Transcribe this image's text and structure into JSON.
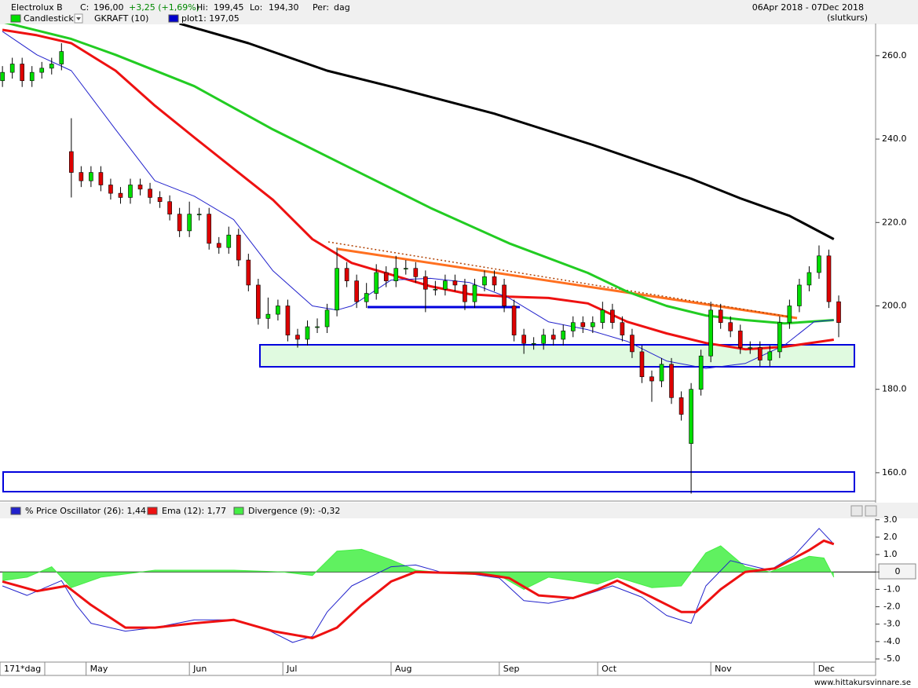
{
  "header": {
    "title": "Electrolux B",
    "close_label": "C:",
    "close": "196,00",
    "change": "+3,25 (+1,69%)",
    "high_label": "Hi:",
    "high": "199,45",
    "low_label": "Lo:",
    "low": "194,30",
    "period_label": "Per:",
    "period": "dag",
    "range": "06Apr 2018 - 07Dec 2018",
    "price_basis": "(slutkurs)"
  },
  "footer": {
    "bars": "171*dag",
    "source": "www.hittakursvinnare.se"
  },
  "chart_data": [
    {
      "type": "candlestick",
      "legend": [
        {
          "name": "Candlestick",
          "color": "#00e000"
        },
        {
          "name": "GKRAFT (10)"
        },
        {
          "name": "plot1: 197,05",
          "color": "#0000cc"
        }
      ],
      "up_color": "#00dd00",
      "down_color": "#dd0000",
      "xlim": [
        -0.5,
        177.5
      ],
      "ylim": [
        153.2,
        267.7
      ],
      "yticks": [
        {
          "value": 160,
          "label": "160.0"
        },
        {
          "value": 180,
          "label": "180.0"
        },
        {
          "value": 200,
          "label": "200.0"
        },
        {
          "value": 220,
          "label": "220.0"
        },
        {
          "value": 240,
          "label": "240.0"
        },
        {
          "value": 260,
          "label": "260.0"
        }
      ],
      "x": [
        0,
        2,
        4,
        6,
        8,
        10,
        12,
        14,
        16,
        18,
        20,
        22,
        24,
        26,
        28,
        30,
        32,
        34,
        36,
        38,
        40,
        42,
        44,
        46,
        48,
        50,
        52,
        54,
        56,
        58,
        60,
        62,
        64,
        66,
        68,
        70,
        72,
        74,
        76,
        78,
        80,
        82,
        84,
        86,
        88,
        90,
        92,
        94,
        96,
        98,
        100,
        102,
        104,
        106,
        108,
        110,
        112,
        114,
        116,
        118,
        120,
        122,
        124,
        126,
        128,
        130,
        132,
        134,
        136,
        138,
        140,
        142,
        144,
        146,
        148,
        150,
        152,
        154,
        156,
        158,
        160,
        162,
        164,
        166,
        168,
        170
      ],
      "open": [
        254,
        256,
        258,
        254,
        256,
        257,
        258,
        237,
        232,
        230,
        232,
        229,
        227,
        226,
        229,
        228,
        226,
        225,
        222,
        218,
        222,
        222,
        215,
        214,
        217,
        211,
        205,
        197,
        198,
        200,
        193,
        192,
        195,
        195,
        199,
        209,
        206,
        201,
        203,
        208,
        206,
        209,
        209,
        207,
        204,
        204,
        206,
        205,
        201,
        205,
        207,
        205,
        200,
        193,
        191,
        191,
        193,
        192,
        194,
        196,
        195,
        196,
        199,
        196,
        193,
        189,
        183,
        182,
        186,
        178,
        167,
        180,
        188,
        199,
        196,
        194,
        190,
        190,
        187,
        189,
        196,
        200,
        205,
        208,
        212,
        201
      ],
      "high": [
        257.5,
        259.5,
        259.5,
        257.5,
        258.5,
        259.5,
        263,
        245,
        233.5,
        233.5,
        233.5,
        230.5,
        228.5,
        230.5,
        230.5,
        229.5,
        227.5,
        226.5,
        223.5,
        225,
        223.5,
        223.5,
        216.5,
        219,
        218.5,
        212.5,
        206.5,
        202,
        201.5,
        201.5,
        194.5,
        196.5,
        197,
        200.5,
        214,
        210.5,
        207.5,
        205.5,
        210,
        209.5,
        212,
        211,
        210.5,
        208.5,
        206,
        207.5,
        207.5,
        206.5,
        206.5,
        208.5,
        208.5,
        206.5,
        201.5,
        194.5,
        192.5,
        194.5,
        194.5,
        195.5,
        197.5,
        197.5,
        197.5,
        201,
        200.5,
        197.5,
        194.5,
        190.5,
        184.5,
        187.5,
        187.5,
        179.5,
        181.5,
        189.5,
        201,
        200.5,
        197.5,
        195.5,
        191.5,
        191.5,
        190.5,
        197.5,
        201.5,
        206.5,
        209.5,
        214.5,
        213.5,
        202.5
      ],
      "low": [
        252.5,
        254.5,
        252.5,
        252.5,
        254.5,
        255.5,
        256.5,
        226,
        228.5,
        228.5,
        227.5,
        225.5,
        224.5,
        224.5,
        226.5,
        224.5,
        223.5,
        220.5,
        216.5,
        216.5,
        220.5,
        213.5,
        212.5,
        212.5,
        209.5,
        203.5,
        195.5,
        194.5,
        196.5,
        191.5,
        190,
        190.5,
        193.5,
        193.5,
        197.5,
        204.5,
        199.5,
        199.5,
        201.5,
        204.5,
        204.5,
        207.5,
        205.5,
        198.5,
        202.5,
        202.5,
        203.5,
        199,
        199.5,
        203.5,
        203.5,
        198.5,
        191.5,
        188.5,
        189.5,
        189.5,
        190.5,
        190.5,
        192.5,
        193.5,
        193.5,
        194.5,
        194.5,
        191.5,
        187.5,
        181.5,
        177,
        180.5,
        176.5,
        172.5,
        155,
        178.5,
        186.5,
        194.5,
        192.5,
        188.5,
        188.5,
        185.5,
        185.5,
        187.5,
        194.5,
        198.5,
        203.5,
        206.5,
        199.5,
        192.5
      ],
      "close": [
        256,
        258,
        254,
        256,
        257,
        258,
        261,
        232,
        230,
        232,
        229,
        227,
        226,
        229,
        228,
        226,
        225,
        222,
        218,
        222,
        222,
        215,
        214,
        217,
        211,
        205,
        197,
        198,
        200,
        193,
        192,
        195,
        195,
        199,
        209,
        206,
        201,
        203,
        208,
        206,
        209,
        209,
        207,
        204,
        204,
        206,
        205,
        201,
        205,
        207,
        205,
        200,
        193,
        191,
        191,
        193,
        192,
        194,
        196,
        195,
        196,
        199,
        196,
        193,
        189,
        183,
        182,
        186,
        178,
        174,
        180,
        188,
        199,
        196,
        194,
        190,
        190,
        187,
        189,
        196,
        200,
        205,
        208,
        212,
        201,
        196
      ],
      "lines": [
        {
          "color": "#000000",
          "style": "thick",
          "x": [
            36,
            50,
            66,
            80,
            100,
            120,
            140,
            150,
            160,
            169
          ],
          "values": [
            267.7,
            263,
            256.4,
            252.3,
            246.1,
            238.6,
            230.5,
            225.8,
            221.6,
            216
          ]
        },
        {
          "color": "#22cc22",
          "style": "thick",
          "x": [
            0,
            14,
            23,
            39,
            55,
            71,
            87,
            103,
            119,
            127,
            135,
            143,
            151,
            159,
            169
          ],
          "values": [
            268.1,
            264,
            260.2,
            252.7,
            242.3,
            232.9,
            223.5,
            215,
            207.9,
            203.4,
            200,
            197.7,
            196.6,
            195.8,
            196.6
          ]
        },
        {
          "color": "#ee1111",
          "style": "thick",
          "x": [
            0,
            7,
            14,
            23,
            31,
            39,
            47,
            55,
            63,
            71,
            79,
            87,
            95,
            103,
            111,
            119,
            127,
            135,
            143,
            151,
            159,
            169
          ],
          "values": [
            266.2,
            264.9,
            263,
            256.4,
            248,
            240.4,
            232.9,
            225.4,
            216,
            210.3,
            207.5,
            204.7,
            202.8,
            202.2,
            201.9,
            200.6,
            196.2,
            193.4,
            191.1,
            189.6,
            190.2,
            191.9
          ]
        },
        {
          "color": "#2222cc",
          "style": "thin",
          "x": [
            0,
            7,
            14,
            23,
            31,
            39,
            47,
            55,
            63,
            68,
            71,
            79,
            87,
            95,
            103,
            111,
            119,
            127,
            135,
            143,
            151,
            159,
            165,
            169
          ],
          "values": [
            265.8,
            260.2,
            256.4,
            242.3,
            230,
            226.3,
            220.7,
            208.4,
            200,
            199,
            200,
            206.2,
            206.6,
            205.6,
            201.9,
            196.2,
            194.3,
            191.5,
            186.8,
            185,
            186.2,
            190.6,
            196.2,
            196.6
          ]
        }
      ]
    },
    {
      "type": "line",
      "xlim": [
        -0.5,
        177.5
      ],
      "ylim": [
        -5.18,
        3.08
      ],
      "zero_line": true,
      "yticks": [
        {
          "value": 3,
          "label": "3.0"
        },
        {
          "value": 2,
          "label": "2.0"
        },
        {
          "value": 1,
          "label": "1.0"
        },
        0,
        {
          "value": -1,
          "label": "-1.0"
        },
        {
          "value": -2,
          "label": "-2.0"
        },
        {
          "value": -3,
          "label": "-3.0"
        },
        {
          "value": -4,
          "label": "-4.0"
        },
        {
          "value": -5,
          "label": "-5.0"
        }
      ],
      "xticks": [
        {
          "value": 17,
          "label": "May"
        },
        {
          "value": 38,
          "label": "Jun"
        },
        {
          "value": 57,
          "label": "Jul"
        },
        {
          "value": 79,
          "label": "Aug"
        },
        {
          "value": 101,
          "label": "Sep"
        },
        {
          "value": 121,
          "label": "Oct"
        },
        {
          "value": 144,
          "label": "Nov"
        },
        {
          "value": 165,
          "label": "Dec"
        }
      ],
      "series": [
        {
          "name": "% Price Oscillator (26): 1,44",
          "color": "#2222cc",
          "style": "thin",
          "x": [
            0,
            5,
            12,
            15,
            18,
            25,
            31,
            39,
            47,
            53,
            59,
            63,
            66,
            71,
            79,
            84,
            89,
            95,
            101,
            106,
            111,
            117,
            124,
            130,
            135,
            140,
            143,
            148,
            153,
            156,
            161,
            166,
            169
          ],
          "values": [
            -0.8,
            -1.35,
            -0.5,
            -1.9,
            -2.95,
            -3.4,
            -3.2,
            -2.75,
            -2.75,
            -3.2,
            -4.05,
            -3.7,
            -2.3,
            -0.8,
            0.3,
            0.4,
            0,
            -0.1,
            -0.35,
            -1.65,
            -1.8,
            -1.45,
            -0.8,
            -1.45,
            -2.5,
            -2.95,
            -0.8,
            0.65,
            0.3,
            0.1,
            0.95,
            2.5,
            1.6
          ]
        },
        {
          "name": "Ema (12): 1,77",
          "color": "#ee1111",
          "style": "thick",
          "x": [
            0,
            7,
            13,
            18,
            25,
            31,
            39,
            47,
            55,
            63,
            68,
            73,
            79,
            84,
            90,
            97,
            103,
            109,
            116,
            121,
            125,
            132,
            138,
            141,
            146,
            151,
            157,
            164,
            167,
            169
          ],
          "values": [
            -0.55,
            -1.1,
            -0.8,
            -1.9,
            -3.2,
            -3.2,
            -2.95,
            -2.75,
            -3.4,
            -3.8,
            -3.2,
            -1.9,
            -0.55,
            0,
            -0.05,
            -0.1,
            -0.35,
            -1.35,
            -1.5,
            -1.0,
            -0.5,
            -1.45,
            -2.3,
            -2.3,
            -1.0,
            0,
            0.2,
            1.25,
            1.8,
            1.6
          ]
        },
        {
          "name": "Divergence (9): -0,32",
          "color": "#44ee44",
          "style": "area",
          "x": [
            0,
            5,
            10,
            14,
            20,
            31,
            47,
            57,
            63,
            68,
            73,
            79,
            84,
            92,
            101,
            106,
            111,
            121,
            125,
            132,
            138,
            143,
            146,
            151,
            156,
            159,
            164,
            167,
            169
          ],
          "values": [
            -0.5,
            -0.3,
            0.3,
            -0.9,
            -0.3,
            0.1,
            0.1,
            0,
            -0.2,
            1.2,
            1.3,
            0.7,
            0.1,
            -0.1,
            -0.2,
            -1.0,
            -0.3,
            -0.7,
            -0.3,
            -0.9,
            -0.8,
            1.1,
            1.5,
            0.3,
            0,
            0.3,
            0.9,
            0.8,
            -0.3
          ]
        }
      ]
    }
  ]
}
